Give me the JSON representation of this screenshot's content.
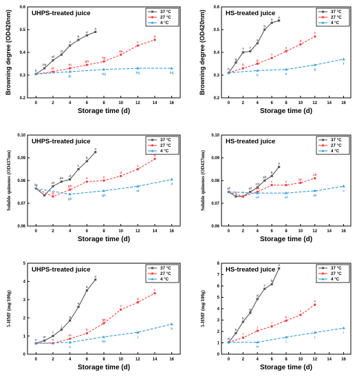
{
  "colors": {
    "37": "#555555",
    "27": "#ff3b3b",
    "4": "#2b9be6"
  },
  "chart_data": [
    {
      "id": "A",
      "type": "line",
      "title": "UHPS-treated juice",
      "ylabel": "Browning degree (OD420nm)",
      "xlabel": "Storage time (d)",
      "xlim": [
        -1,
        17
      ],
      "ylim": [
        0.2,
        0.6
      ],
      "xticks": [
        "0",
        "2",
        "4",
        "6",
        "8",
        "10",
        "12",
        "14",
        "16"
      ],
      "yticks": [
        "0.2",
        "0.3",
        "0.4",
        "0.5",
        "0.6"
      ],
      "legend_position": "top-right",
      "series": [
        {
          "name": "37 °C",
          "x": [
            0,
            1,
            2,
            3,
            4,
            5,
            6,
            7
          ],
          "y": [
            0.305,
            0.33,
            0.365,
            0.39,
            0.43,
            0.455,
            0.475,
            0.49
          ],
          "labels": [
            "k",
            "hij",
            "ef",
            "d",
            "c",
            "b",
            "a",
            "a"
          ]
        },
        {
          "name": "27 °C",
          "x": [
            0,
            2,
            4,
            6,
            8,
            10,
            12,
            14
          ],
          "y": [
            0.305,
            0.315,
            0.33,
            0.345,
            0.36,
            0.39,
            0.43,
            0.455
          ],
          "labels": [
            "",
            "jk",
            "hi",
            "gh",
            "fg",
            "de",
            "c",
            "b"
          ]
        },
        {
          "name": "4 °C",
          "x": [
            0,
            4,
            8,
            12,
            16
          ],
          "y": [
            0.305,
            0.315,
            0.325,
            0.33,
            0.33
          ],
          "labels": [
            "",
            "jk",
            "hij",
            "hij",
            "hij"
          ]
        }
      ]
    },
    {
      "id": "B",
      "type": "line",
      "title": "HS-treated juice",
      "ylabel": "Browning degree (OD420nm)",
      "xlabel": "Storage time (d)",
      "xlim": [
        -1,
        17
      ],
      "ylim": [
        0.2,
        0.6
      ],
      "xticks": [
        "0",
        "2",
        "4",
        "6",
        "8",
        "10",
        "12",
        "14",
        "16"
      ],
      "yticks": [
        "0.2",
        "0.3",
        "0.4",
        "0.5",
        "0.6"
      ],
      "legend_position": "top-right",
      "series": [
        {
          "name": "37 °C",
          "x": [
            0,
            1,
            2,
            3,
            4,
            5,
            6,
            7
          ],
          "y": [
            0.31,
            0.355,
            0.4,
            0.405,
            0.44,
            0.5,
            0.53,
            0.54
          ],
          "labels": [
            "h",
            "g",
            "f",
            "f",
            "e",
            "b",
            "a",
            "a"
          ]
        },
        {
          "name": "27 °C",
          "x": [
            0,
            2,
            4,
            6,
            8,
            10,
            12
          ],
          "y": [
            0.31,
            0.33,
            0.35,
            0.375,
            0.405,
            0.435,
            0.47
          ],
          "labels": [
            "",
            "h",
            "g",
            "f",
            "e",
            "d",
            "c"
          ]
        },
        {
          "name": "4 °C",
          "x": [
            0,
            4,
            8,
            12,
            16
          ],
          "y": [
            0.31,
            0.32,
            0.325,
            0.345,
            0.37
          ],
          "labels": [
            "",
            "h",
            "h",
            "g",
            "f"
          ]
        }
      ]
    },
    {
      "id": "C",
      "type": "line",
      "title": "UHPS-treated juice",
      "ylabel": "Soluble quinones (OD437nm)",
      "xlabel": "Storage time (d)",
      "xlim": [
        -1,
        17
      ],
      "ylim": [
        0.06,
        0.1
      ],
      "xticks": [
        "0",
        "2",
        "4",
        "6",
        "8",
        "10",
        "12",
        "14",
        "16"
      ],
      "yticks": [
        "0.06",
        "0.07",
        "0.08",
        "0.09",
        "0.10"
      ],
      "legend_position": "top-right",
      "series": [
        {
          "name": "37 °C",
          "x": [
            0,
            1,
            2,
            3,
            4,
            5,
            6,
            7
          ],
          "y": [
            0.0765,
            0.0735,
            0.0775,
            0.0795,
            0.0805,
            0.085,
            0.0885,
            0.0925
          ],
          "labels": [
            "fg",
            "",
            "ef",
            "de",
            "d",
            "c",
            "b",
            "a"
          ]
        },
        {
          "name": "27 °C",
          "x": [
            0,
            2,
            4,
            6,
            8,
            10,
            12,
            14
          ],
          "y": [
            0.0765,
            0.073,
            0.076,
            0.0795,
            0.08,
            0.082,
            0.085,
            0.0895
          ],
          "labels": [
            "",
            "g",
            "gh",
            "e",
            "e",
            "d",
            "c",
            "b"
          ]
        },
        {
          "name": "4 °C",
          "x": [
            0,
            4,
            8,
            12,
            16
          ],
          "y": [
            0.0765,
            0.074,
            0.0755,
            0.0775,
            0.0805
          ],
          "labels": [
            "",
            "gh",
            "gh",
            "ef",
            "d"
          ]
        }
      ]
    },
    {
      "id": "D",
      "type": "line",
      "title": "HS-treated juice",
      "ylabel": "Soluble quinones (OD437nm)",
      "xlabel": "Storage time (d)",
      "xlim": [
        -1,
        17
      ],
      "ylim": [
        0.06,
        0.1
      ],
      "xticks": [
        "0",
        "2",
        "4",
        "6",
        "8",
        "10",
        "12",
        "14",
        "16"
      ],
      "yticks": [
        "0.06",
        "0.07",
        "0.08",
        "0.09",
        "0.10"
      ],
      "legend_position": "top-right",
      "series": [
        {
          "name": "37 °C",
          "x": [
            0,
            1,
            2,
            3,
            4,
            5,
            6,
            7
          ],
          "y": [
            0.075,
            0.073,
            0.073,
            0.075,
            0.077,
            0.08,
            0.082,
            0.086
          ],
          "labels": [
            "ef",
            "f",
            "f",
            "ef",
            "cd",
            "ab",
            "b",
            "a"
          ]
        },
        {
          "name": "27 °C",
          "x": [
            0,
            2,
            4,
            6,
            8,
            10,
            12
          ],
          "y": [
            0.075,
            0.073,
            0.075,
            0.078,
            0.078,
            0.079,
            0.081
          ],
          "labels": [
            "",
            "f",
            "de",
            "c",
            "c",
            "bc",
            "ab"
          ]
        },
        {
          "name": "4 °C",
          "x": [
            0,
            4,
            8,
            12,
            16
          ],
          "y": [
            0.075,
            0.0745,
            0.0745,
            0.0755,
            0.0775
          ],
          "labels": [
            "",
            "ef",
            "ef",
            "de",
            "c"
          ]
        }
      ]
    },
    {
      "id": "E",
      "type": "line",
      "title": "UHPS-treated juice",
      "ylabel": "5-HMF (mg/100g)",
      "xlabel": "Storage time (d)",
      "xlim": [
        -1,
        17
      ],
      "ylim": [
        0,
        5
      ],
      "xticks": [
        "0",
        "2",
        "4",
        "6",
        "8",
        "10",
        "12",
        "14",
        "16"
      ],
      "yticks": [
        "0",
        "1",
        "2",
        "3",
        "4",
        "5"
      ],
      "legend_position": "top-right",
      "series": [
        {
          "name": "37 °C",
          "x": [
            0,
            1,
            2,
            3,
            4,
            5,
            6,
            7
          ],
          "y": [
            0.6,
            0.75,
            1.0,
            1.35,
            1.85,
            2.6,
            3.5,
            4.1
          ],
          "labels": [
            "n",
            "m",
            "l",
            "j",
            "g",
            "e",
            "b",
            "a"
          ]
        },
        {
          "name": "27 °C",
          "x": [
            0,
            2,
            4,
            6,
            8,
            10,
            12,
            14
          ],
          "y": [
            0.6,
            0.6,
            0.85,
            1.15,
            1.7,
            2.45,
            2.85,
            3.35
          ],
          "labels": [
            "",
            "n",
            "m",
            "k",
            "gh",
            "f",
            "d",
            "c"
          ]
        },
        {
          "name": "4 °C",
          "x": [
            0,
            4,
            8,
            12,
            16
          ],
          "y": [
            0.6,
            0.65,
            0.95,
            1.2,
            1.65
          ],
          "labels": [
            "",
            "n",
            "lm",
            "j",
            "h"
          ]
        }
      ]
    },
    {
      "id": "F",
      "type": "line",
      "title": "HS-treated juice",
      "ylabel": "5-HMF (mg/100g)",
      "xlabel": "Storage time (d)",
      "xlim": [
        -1,
        17
      ],
      "ylim": [
        0,
        8
      ],
      "xticks": [
        "0",
        "2",
        "4",
        "6",
        "8",
        "10",
        "12",
        "14",
        "16"
      ],
      "yticks": [
        "0",
        "1",
        "2",
        "3",
        "4",
        "5",
        "6",
        "7",
        "8"
      ],
      "legend_position": "top-right",
      "series": [
        {
          "name": "37 °C",
          "x": [
            0,
            1,
            2,
            3,
            4,
            5,
            6,
            7
          ],
          "y": [
            1.05,
            1.85,
            2.85,
            3.65,
            4.85,
            5.75,
            6.15,
            7.55
          ],
          "labels": [
            "m",
            "k",
            "h",
            "g",
            "d",
            "c",
            "b",
            "a"
          ]
        },
        {
          "name": "27 °C",
          "x": [
            0,
            2,
            4,
            6,
            8,
            10,
            12
          ],
          "y": [
            1.05,
            1.45,
            2.05,
            2.45,
            2.95,
            3.45,
            4.35
          ],
          "labels": [
            "",
            "l",
            "j",
            "i",
            "h",
            "f",
            "e"
          ]
        },
        {
          "name": "4 °C",
          "x": [
            0,
            4,
            8,
            12,
            16
          ],
          "y": [
            1.05,
            1.05,
            1.5,
            1.9,
            2.3
          ],
          "labels": [
            "",
            "m",
            "l",
            "j",
            "i"
          ]
        }
      ]
    }
  ]
}
